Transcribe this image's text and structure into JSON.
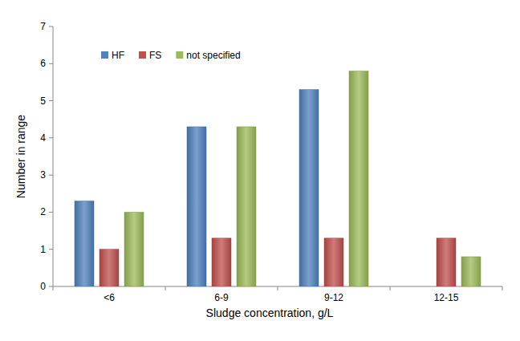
{
  "chart_data": {
    "type": "bar",
    "x_label": "Sludge concentration, g/L",
    "y_label": "Number in range",
    "categories": [
      "<6",
      "6-9",
      "9-12",
      "12-15"
    ],
    "series": [
      {
        "name": "HF",
        "color": "#4f81bd",
        "values": [
          2.3,
          4.3,
          5.3,
          0
        ]
      },
      {
        "name": "FS",
        "color": "#c0504d",
        "values": [
          1.0,
          1.3,
          1.3,
          1.3
        ]
      },
      {
        "name": "not specified",
        "color": "#9bbb59",
        "values": [
          2.0,
          4.3,
          5.8,
          0.8
        ]
      }
    ],
    "ylim": [
      0,
      7
    ],
    "yticks": [
      0,
      1,
      2,
      3,
      4,
      5,
      6,
      7
    ],
    "grid": false,
    "legend": "top-left",
    "data_labels": false
  }
}
